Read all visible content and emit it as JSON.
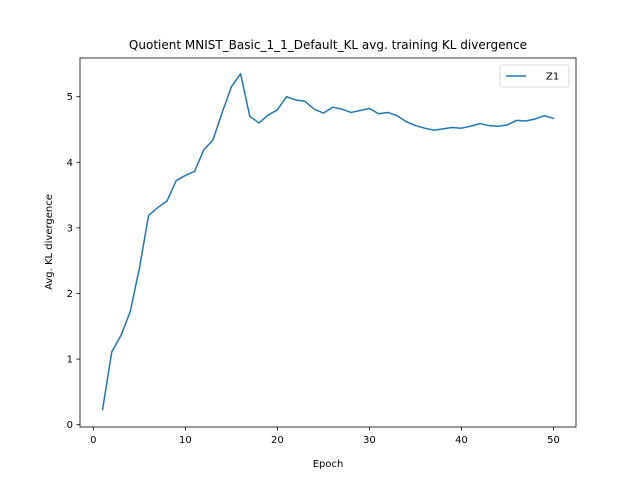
{
  "chart_data": {
    "type": "line",
    "title": "Quotient MNIST_Basic_1_1_Default_KL avg. training KL divergence",
    "xlabel": "Epoch",
    "ylabel": "Avg. KL divergence",
    "xlim": [
      -1.45,
      52.45
    ],
    "ylim": [
      -0.035,
      5.59
    ],
    "xticks": [
      0,
      10,
      20,
      30,
      40,
      50
    ],
    "yticks": [
      0,
      1,
      2,
      3,
      4,
      5
    ],
    "grid": false,
    "legend_position": "top-right",
    "colors": {
      "series": "#1f77b4"
    },
    "series": [
      {
        "name": "Z1",
        "x": [
          1,
          2,
          3,
          4,
          5,
          6,
          7,
          8,
          9,
          10,
          11,
          12,
          13,
          14,
          15,
          16,
          17,
          18,
          19,
          20,
          21,
          22,
          23,
          24,
          25,
          26,
          27,
          28,
          29,
          30,
          31,
          32,
          33,
          34,
          35,
          36,
          37,
          38,
          39,
          40,
          41,
          42,
          43,
          44,
          45,
          46,
          47,
          48,
          49,
          50
        ],
        "values": [
          0.23,
          1.11,
          1.36,
          1.72,
          2.38,
          3.19,
          3.31,
          3.41,
          3.72,
          3.8,
          3.86,
          4.19,
          4.34,
          4.76,
          5.15,
          5.35,
          4.7,
          4.6,
          4.72,
          4.8,
          5.0,
          4.95,
          4.93,
          4.81,
          4.75,
          4.84,
          4.81,
          4.76,
          4.79,
          4.82,
          4.74,
          4.76,
          4.71,
          4.62,
          4.56,
          4.52,
          4.49,
          4.51,
          4.53,
          4.52,
          4.55,
          4.59,
          4.56,
          4.55,
          4.57,
          4.64,
          4.63,
          4.66,
          4.71,
          4.67
        ]
      }
    ]
  }
}
